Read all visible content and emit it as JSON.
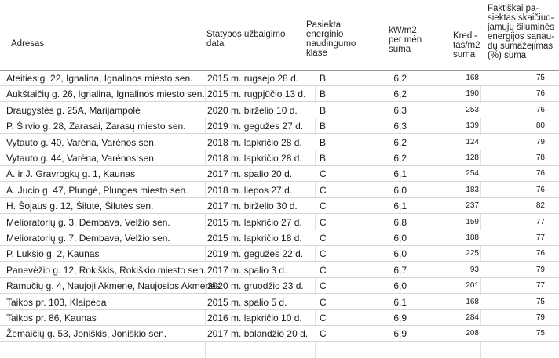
{
  "headers": {
    "address": "Adresas",
    "date": [
      "Statybos užbaigimo",
      "data"
    ],
    "class": [
      "Pasiekta",
      "energinio",
      "naudingumo",
      "klasė"
    ],
    "kw": [
      "kW/m2",
      "per mėn",
      "suma"
    ],
    "kred": [
      "Kredi-",
      "tas/m2",
      "suma"
    ],
    "fakt": [
      "Faktiškai  pa-",
      "siektas skaičiuo-",
      "jamųjų šiluminės",
      "energijos sąnau-",
      "dų sumažėjimas",
      "(%) suma"
    ]
  },
  "rows": [
    {
      "address": "Ateities g. 22, Ignalina, Ignalinos miesto sen.",
      "date": "2015 m. rugsėjo 28 d.",
      "class": "B",
      "kw": "6,2",
      "kred": "168",
      "fakt": "75"
    },
    {
      "address": "Aukštaičių g. 26, Ignalina, Ignalinos miesto sen.",
      "date": "2015 m. rugpjūčio 13 d.",
      "class": "B",
      "kw": "6,2",
      "kred": "190",
      "fakt": "76"
    },
    {
      "address": "Draugystės g. 25A, Marijampolė",
      "date": "2020 m. birželio 10 d.",
      "class": "B",
      "kw": "6,3",
      "kred": "253",
      "fakt": "76"
    },
    {
      "address": "P. Širvio g. 28, Zarasai, Zarasų miesto sen.",
      "date": "2019 m. gegužės 27 d.",
      "class": "B",
      "kw": "6,3",
      "kred": "139",
      "fakt": "80"
    },
    {
      "address": "Vytauto g. 40, Varėna, Varėnos sen.",
      "date": "2018 m. lapkričio 28 d.",
      "class": "B",
      "kw": "6,2",
      "kred": "124",
      "fakt": "79"
    },
    {
      "address": "Vytauto g. 44, Varėna, Varėnos sen.",
      "date": "2018 m. lapkričio 28 d.",
      "class": "B",
      "kw": "6,2",
      "kred": "128",
      "fakt": "78"
    },
    {
      "address": "A. ir J. Gravrogkų g. 1, Kaunas",
      "date": "2017 m. spalio 20 d.",
      "class": "C",
      "kw": "6,1",
      "kred": "254",
      "fakt": "76"
    },
    {
      "address": "A. Jucio g. 47, Plungė, Plungės miesto sen.",
      "date": "2018 m. liepos 27 d.",
      "class": "C",
      "kw": "6,0",
      "kred": "183",
      "fakt": "76"
    },
    {
      "address": "H. Šojaus g. 12, Šilutė, Šilutės sen.",
      "date": "2017 m. birželio 30 d.",
      "class": "C",
      "kw": "6,1",
      "kred": "237",
      "fakt": "82"
    },
    {
      "address": "Melioratorių g. 3, Dembava, Velžio sen.",
      "date": "2015 m. lapkričio 27 d.",
      "class": "C",
      "kw": "6,8",
      "kred": "159",
      "fakt": "77"
    },
    {
      "address": "Melioratorių g. 7, Dembava, Velžio sen.",
      "date": "2015 m. lapkričio 18 d.",
      "class": "C",
      "kw": "6,0",
      "kred": "188",
      "fakt": "77"
    },
    {
      "address": "P. Lukšio g. 2, Kaunas",
      "date": "2019 m. gegužės 22 d.",
      "class": "C",
      "kw": "6,0",
      "kred": "225",
      "fakt": "76"
    },
    {
      "address": "Panevėžio g. 12, Rokiškis, Rokiškio miesto sen.",
      "date": "2017 m. spalio 3 d.",
      "class": "C",
      "kw": "6,7",
      "kred": "93",
      "fakt": "79"
    },
    {
      "address": "Ramučių g. 4, Naujoji Akmenė, Naujosios Akmenės",
      "date": "2020 m. gruodžio 23 d.",
      "class": "C",
      "kw": "6,0",
      "kred": "201",
      "fakt": "77"
    },
    {
      "address": "Taikos pr. 103, Klaipėda",
      "date": "2015 m. spalio 5 d.",
      "class": "C",
      "kw": "6,1",
      "kred": "168",
      "fakt": "75"
    },
    {
      "address": "Taikos pr. 86, Kaunas",
      "date": "2016 m. lapkričio 10 d.",
      "class": "C",
      "kw": "6,9",
      "kred": "284",
      "fakt": "79"
    },
    {
      "address": "Žemaičių g. 53, Joniškis, Joniškio sen.",
      "date": "2017 m. balandžio 20 d.",
      "class": "C",
      "kw": "6,9",
      "kred": "208",
      "fakt": "75"
    }
  ]
}
